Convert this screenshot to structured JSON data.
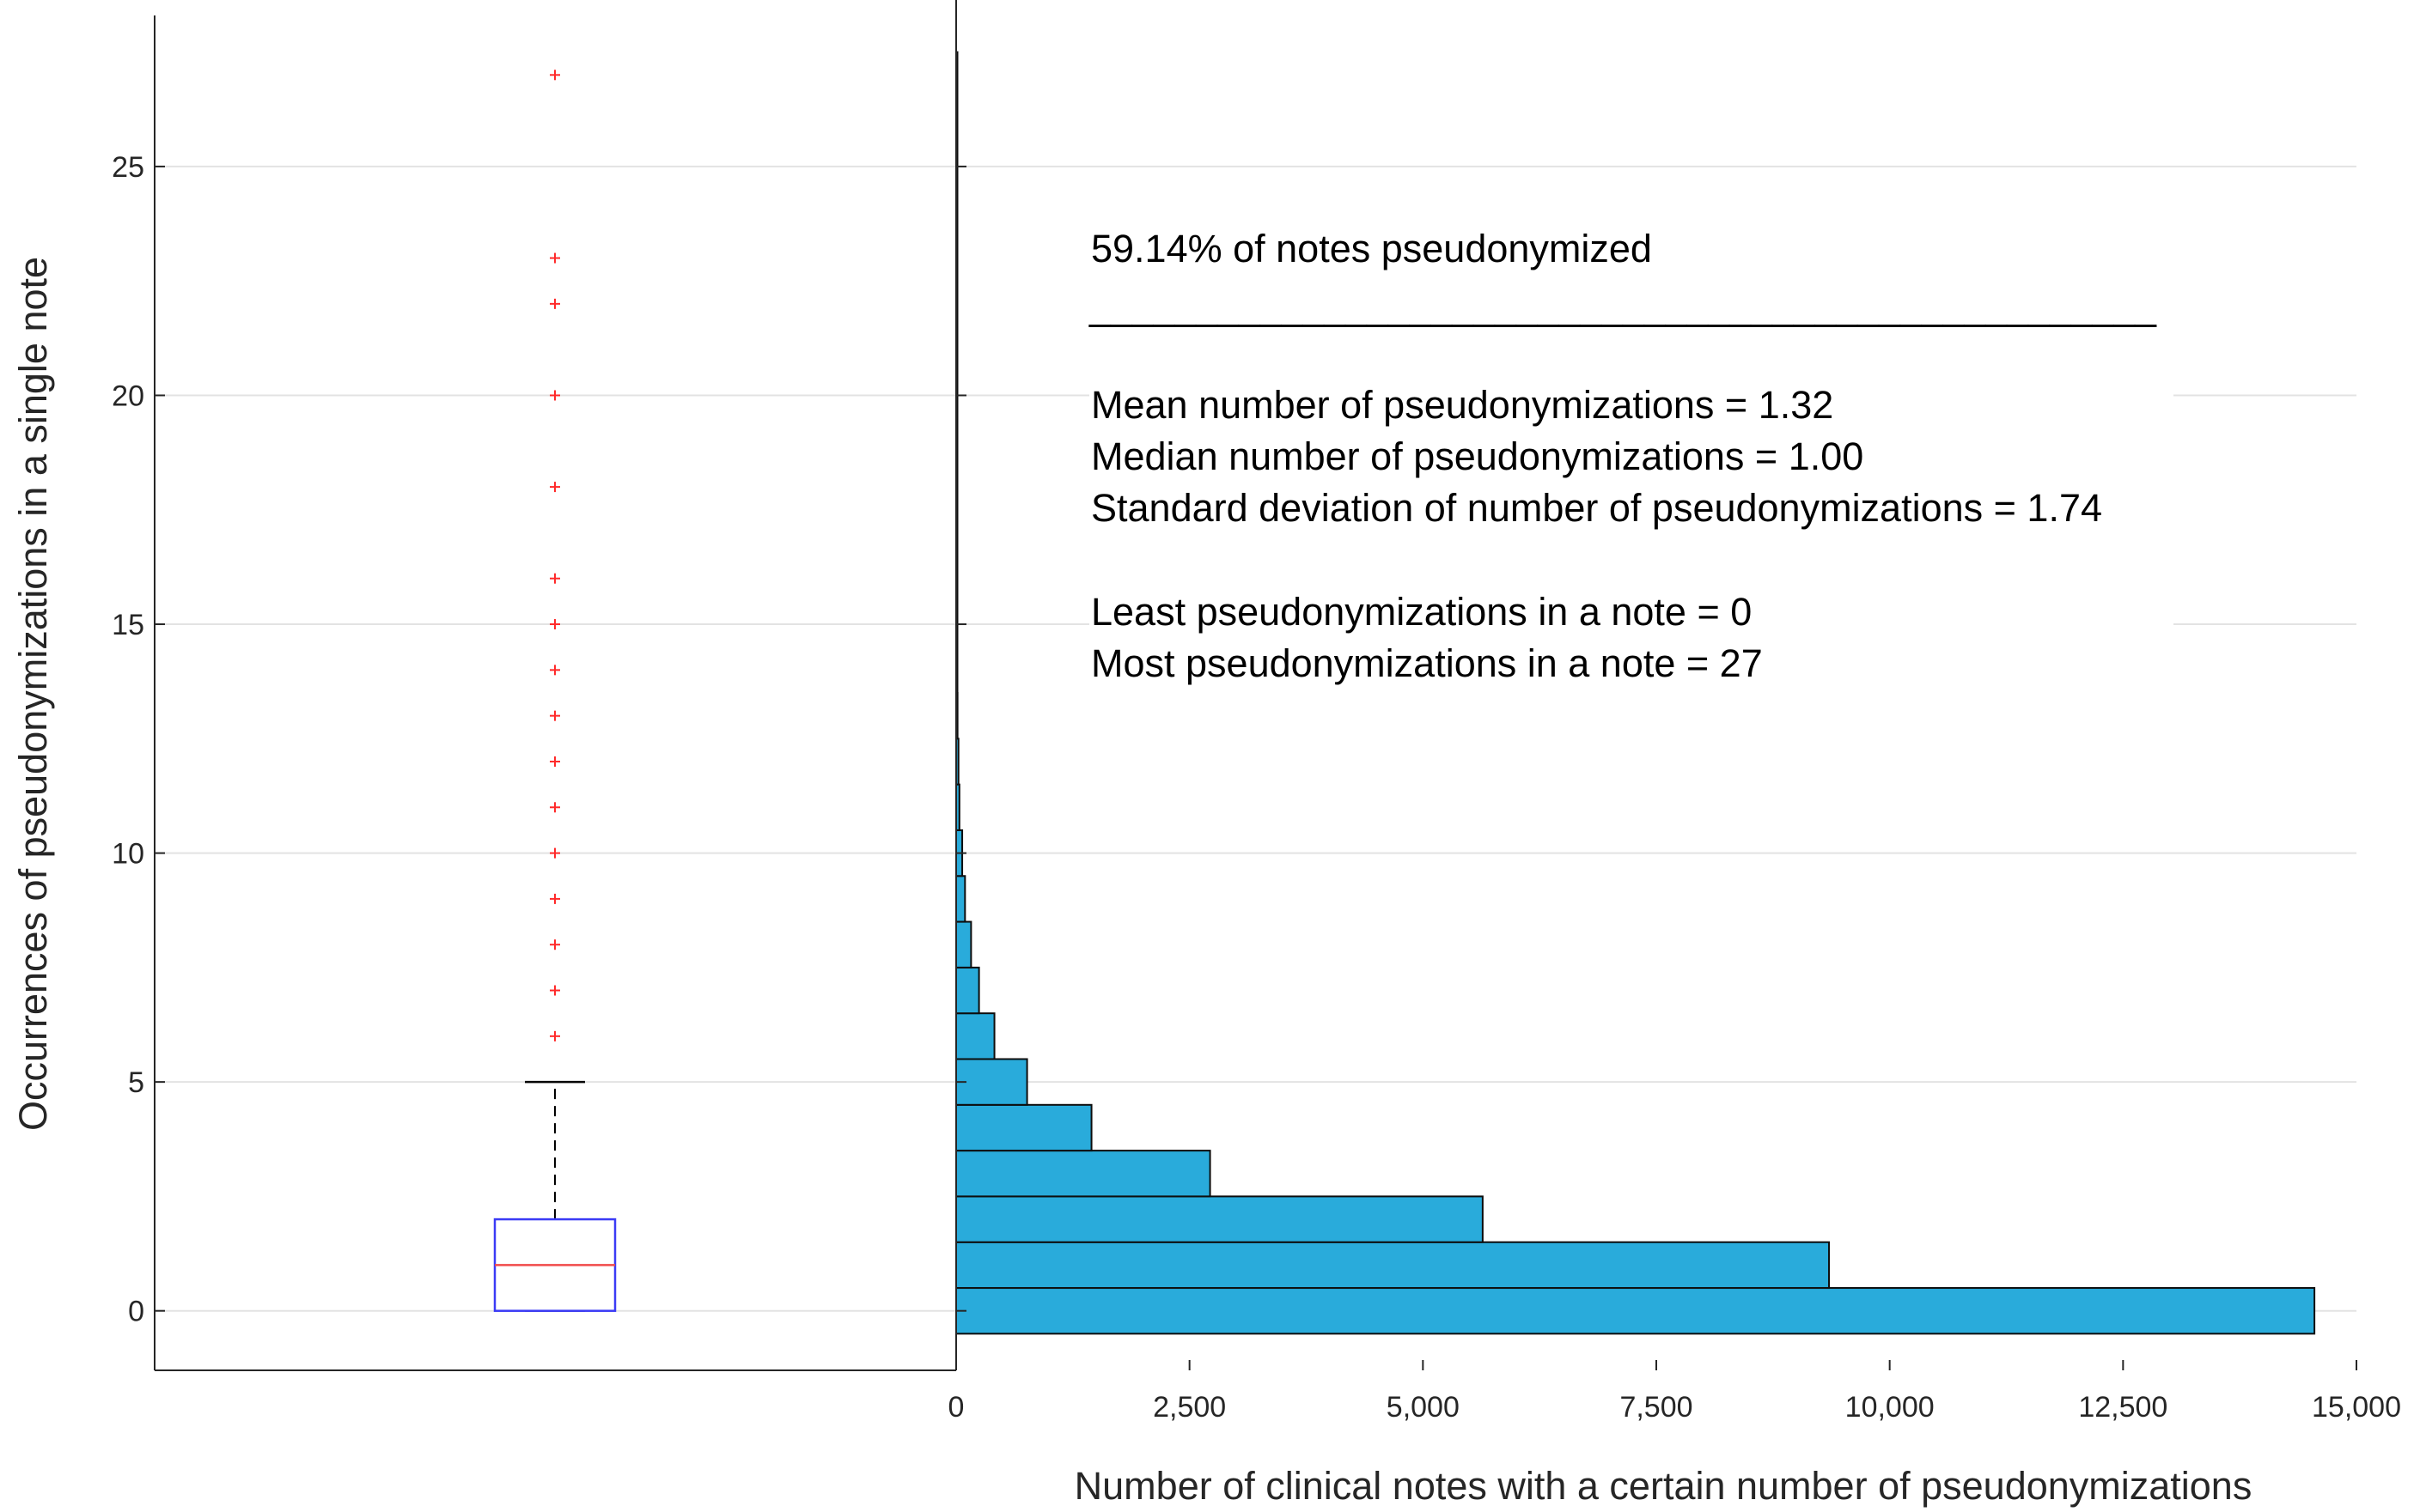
{
  "chart_data": [
    {
      "type": "boxplot",
      "ylabel": "Occurrences of pseudonymizations in a single note",
      "ylim": [
        -1.3,
        28.3
      ],
      "yticks": [
        0,
        5,
        10,
        15,
        20,
        25
      ],
      "grid": true,
      "box": {
        "q1": 0,
        "median": 1,
        "q3": 2,
        "whisker_low": 0,
        "whisker_high": 5
      },
      "outliers": [
        6,
        7,
        8,
        9,
        10,
        11,
        12,
        13,
        14,
        15,
        16,
        18,
        20,
        22,
        23,
        27
      ],
      "colors": {
        "box": "#3b3bf5",
        "median": "#f04a4a",
        "whisker": "#000000",
        "outlier": "#ff2a2a"
      }
    },
    {
      "type": "bar",
      "orientation": "horizontal",
      "xlabel": "Number of clinical notes with a certain number of pseudonymizations",
      "xlim": [
        0,
        15000
      ],
      "xticks": [
        0,
        2500,
        5000,
        7500,
        10000,
        12500,
        15000
      ],
      "xtick_labels": [
        "0",
        "2,500",
        "5,000",
        "7,500",
        "10,000",
        "12,500",
        "15,000"
      ],
      "categories": [
        0,
        1,
        2,
        3,
        4,
        5,
        6,
        7,
        8,
        9,
        10,
        11,
        12,
        13,
        14,
        15,
        16,
        17,
        18,
        19,
        20,
        21,
        22,
        23,
        24,
        25,
        26,
        27
      ],
      "values": [
        14550,
        9350,
        5640,
        2720,
        1450,
        760,
        410,
        245,
        160,
        95,
        65,
        35,
        25,
        15,
        10,
        8,
        5,
        4,
        3,
        2,
        2,
        1,
        1,
        1,
        1,
        1,
        1,
        1
      ],
      "colors": {
        "bar": "#29abdb",
        "edge": "#0d0d0d"
      }
    }
  ],
  "annotation": {
    "line1": "59.14% of notes pseudonymized",
    "divider": "__________________________________________________",
    "line2": "Mean number of pseudonymizations = 1.32",
    "line3": "Median number of pseudonymizations  = 1.00",
    "line4": "Standard deviation of number of pseudonymizations  = 1.74",
    "line5": "Least pseudonymizations in a note = 0",
    "line6": "Most pseudonymizations in a note = 27"
  }
}
